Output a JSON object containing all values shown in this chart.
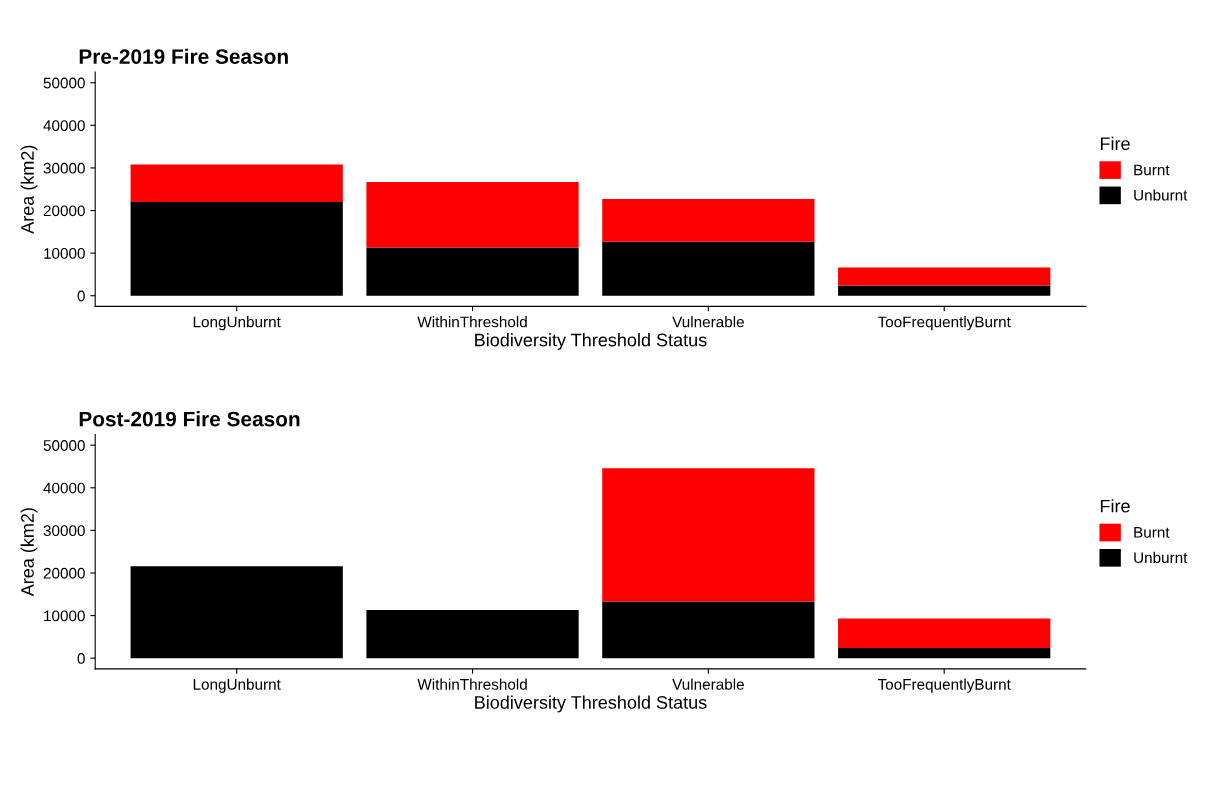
{
  "chart_data": [
    {
      "type": "bar",
      "title": "Pre-2019 Fire Season",
      "xlabel": "Biodiversity Threshold Status",
      "ylabel": "Area (km2)",
      "legend_title": "Fire",
      "categories": [
        "LongUnburnt",
        "WithinThreshold",
        "Vulnerable",
        "TooFrequentlyBurnt"
      ],
      "stacked": true,
      "legend": "right",
      "grid": false,
      "ylim": [
        -2500,
        52500
      ],
      "yticks": [
        0,
        10000,
        20000,
        30000,
        40000,
        50000
      ],
      "series": [
        {
          "name": "Unburnt",
          "color": "#000000",
          "values": [
            22000,
            11300,
            12700,
            2400
          ]
        },
        {
          "name": "Burnt",
          "color": "#ff0000",
          "values": [
            8800,
            15400,
            10000,
            4200
          ]
        }
      ]
    },
    {
      "type": "bar",
      "title": "Post-2019 Fire Season",
      "xlabel": "Biodiversity Threshold Status",
      "ylabel": "Area (km2)",
      "legend_title": "Fire",
      "categories": [
        "LongUnburnt",
        "WithinThreshold",
        "Vulnerable",
        "TooFrequentlyBurnt"
      ],
      "stacked": true,
      "legend": "right",
      "grid": false,
      "ylim": [
        -2500,
        52500
      ],
      "yticks": [
        0,
        10000,
        20000,
        30000,
        40000,
        50000
      ],
      "series": [
        {
          "name": "Unburnt",
          "color": "#000000",
          "values": [
            21600,
            11300,
            13300,
            2400
          ]
        },
        {
          "name": "Burnt",
          "color": "#ff0000",
          "values": [
            0,
            0,
            31300,
            6900
          ]
        }
      ]
    }
  ]
}
